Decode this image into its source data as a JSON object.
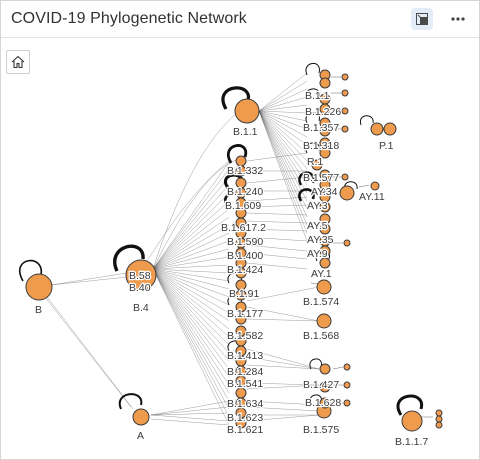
{
  "header": {
    "title": "COVID-19 Phylogenetic Network"
  },
  "colors": {
    "node_fill": "#ee9b4d",
    "node_stroke": "#3b3b3b",
    "edge": "#5a5a5a",
    "active_button": "#e3edf7"
  },
  "icons": {
    "expand": "expand-icon",
    "more": "more-options-icon",
    "home": "home-icon"
  },
  "network": {
    "labels": {
      "B": "B",
      "B4": "B.4",
      "B58": "B.58",
      "B40": "B.40",
      "A": "A",
      "B11": "B.1.1",
      "B111": "B.1.1",
      "B1226": "B.1.226",
      "B1357": "B.1.357",
      "B1318": "B.1.318",
      "P1": "P.1",
      "B1332": "B.1.332",
      "R1": "R.1",
      "B1577": "B.1.577",
      "AY34": "AY.34",
      "AY11": "AY.11",
      "B1240": "B.1.240",
      "B1609": "B.1.609",
      "AY3": "AY.3",
      "B16172": "B.1.617.2",
      "AY5": "AY.5",
      "AY35": "AY.35",
      "B1590": "B.1.590",
      "B1400": "B.1.400",
      "AY9": "AY.9",
      "B1424": "B.1.424",
      "AY1": "AY.1",
      "B1574": "B.1.574",
      "B191": "B.1.91",
      "B1177": "B.1.177",
      "B1568": "B.1.568",
      "B1582": "B.1.582",
      "B1413": "B.1.413",
      "B1284": "B.1.284",
      "B1427": "B.1.427",
      "B1541": "B.1.541",
      "B1634": "B.1.634",
      "B1628": "B.1.628",
      "B1623": "B.1.623",
      "B1621": "B.1.621",
      "B1575": "B.1.575",
      "B117": "B.1.1.7"
    }
  }
}
